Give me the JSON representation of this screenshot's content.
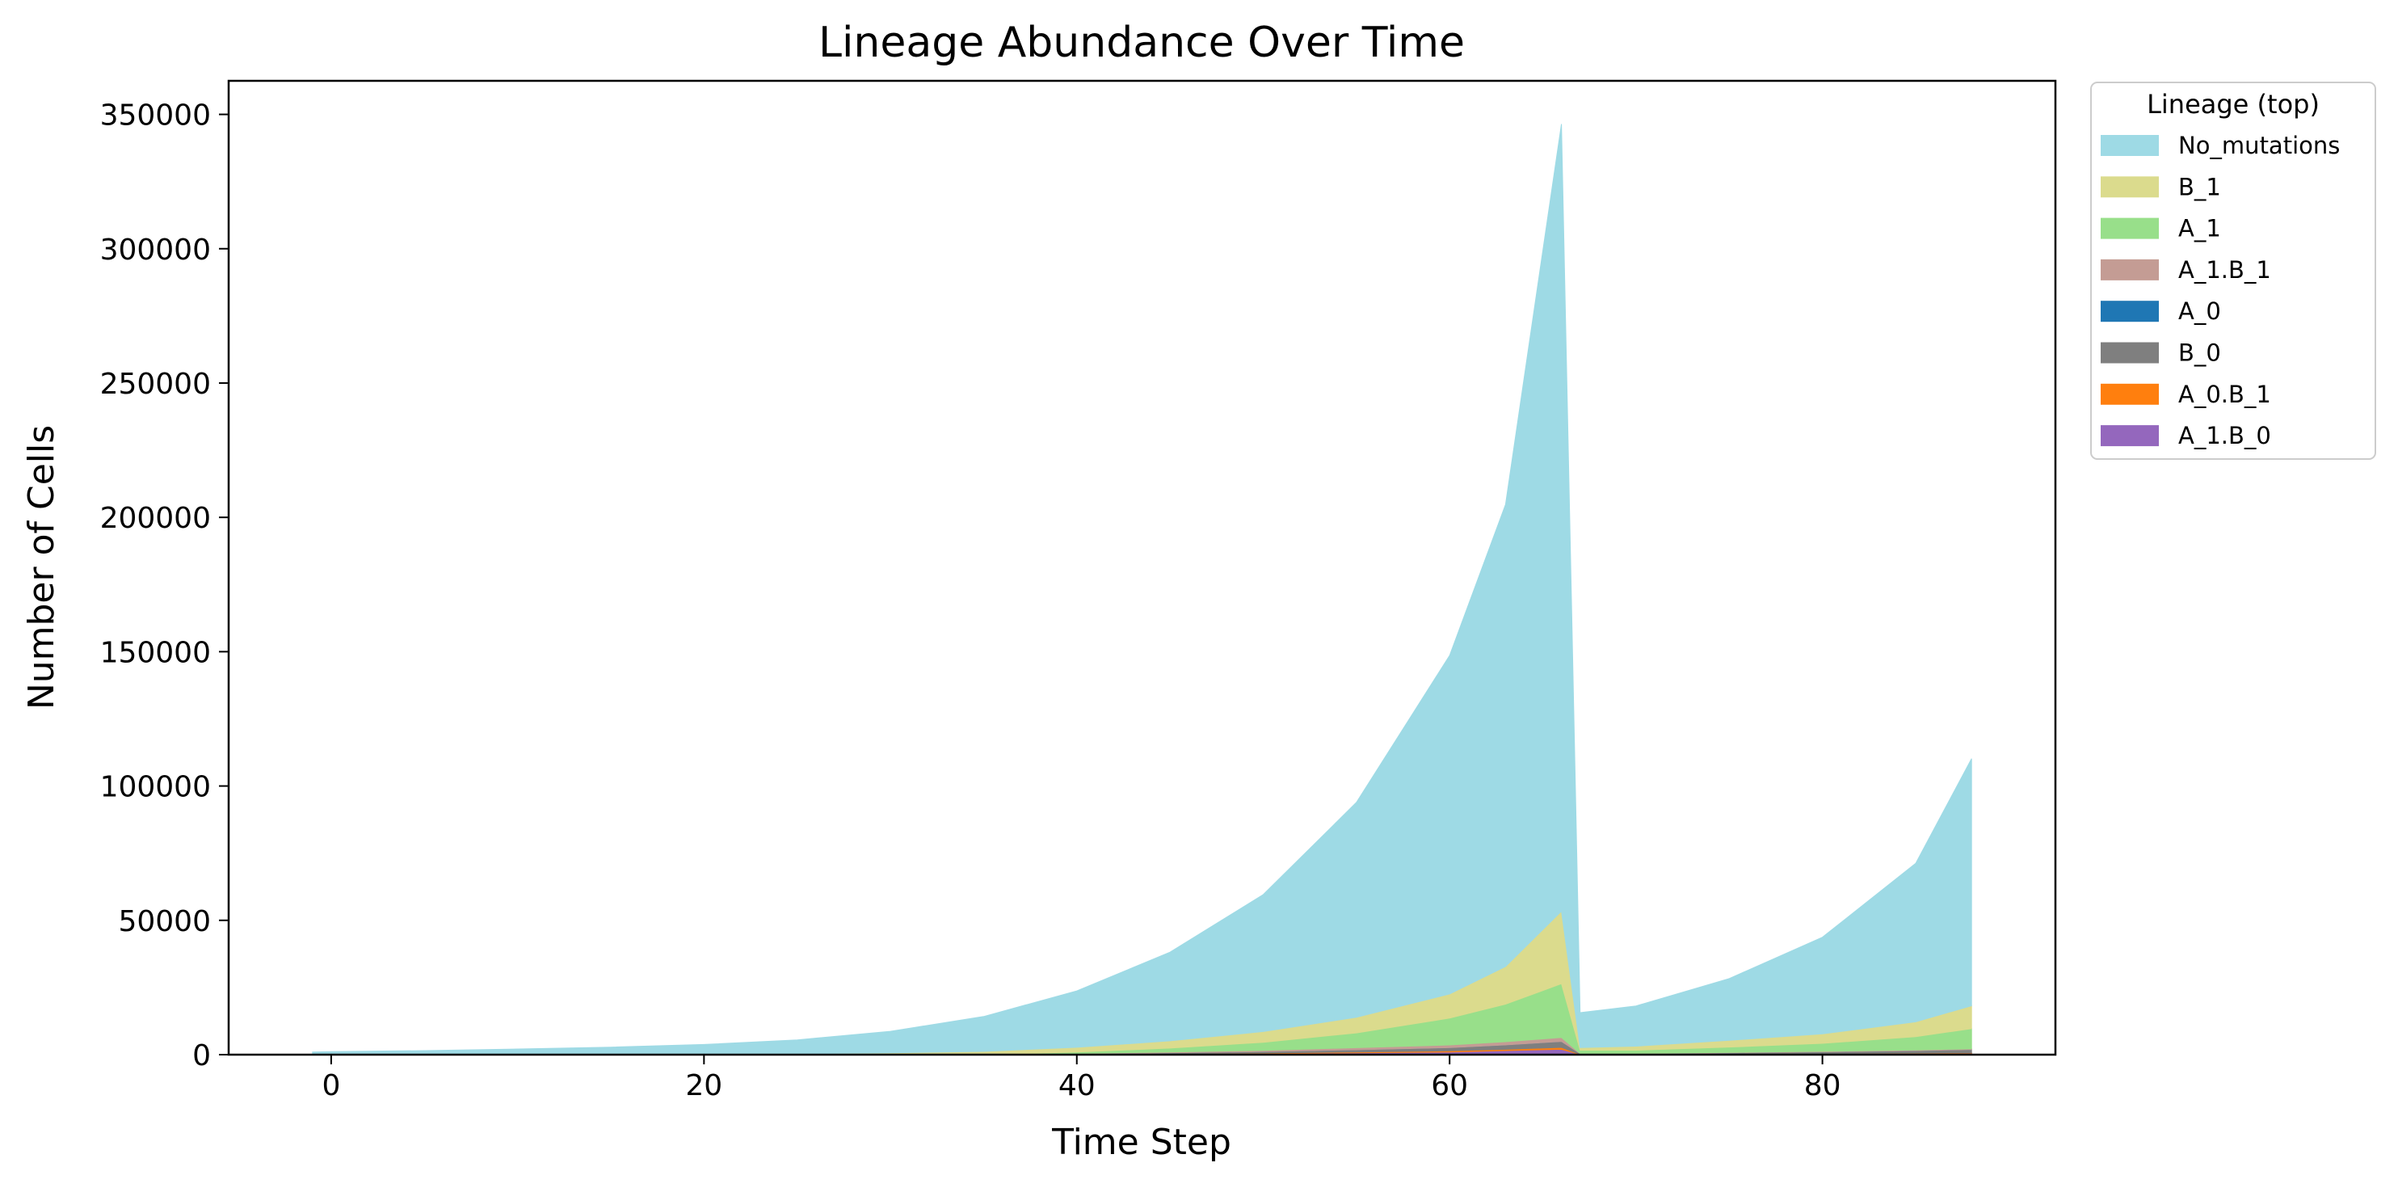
{
  "chart_data": {
    "type": "area",
    "title": "Lineage Abundance Over Time",
    "xlabel": "Time Step",
    "ylabel": "Number of Cells",
    "xlim": [
      -5.5,
      92.5
    ],
    "ylim": [
      0,
      362500
    ],
    "xticks": [
      0,
      20,
      40,
      60,
      80
    ],
    "yticks": [
      0,
      50000,
      100000,
      150000,
      200000,
      250000,
      300000,
      350000
    ],
    "grid": false,
    "legend": {
      "title": "Lineage (top)",
      "placement": "outside-right-top"
    },
    "stacked": true,
    "x": [
      -1,
      0,
      5,
      10,
      15,
      20,
      25,
      30,
      35,
      40,
      45,
      50,
      55,
      60,
      63,
      66,
      67,
      70,
      75,
      80,
      85,
      88
    ],
    "series": [
      {
        "name": "No_mutations",
        "color": "#9edae5",
        "values": [
          1000,
          1100,
          1500,
          2100,
          2800,
          3800,
          5200,
          8000,
          13000,
          21000,
          33000,
          51000,
          80000,
          126000,
          172000,
          293000,
          13000,
          15000,
          23000,
          36000,
          59000,
          92000
        ]
      },
      {
        "name": "B_1",
        "color": "#dbdb8d",
        "values": [
          0,
          0,
          0,
          0,
          0,
          0,
          300,
          700,
          1200,
          1800,
          2700,
          4000,
          5800,
          9000,
          14000,
          27000,
          1000,
          1500,
          2500,
          3500,
          5500,
          8500
        ]
      },
      {
        "name": "A_1",
        "color": "#98df8a",
        "values": [
          0,
          0,
          0,
          0,
          0,
          0,
          0,
          0,
          0,
          500,
          1500,
          3000,
          5500,
          10000,
          14000,
          20000,
          1200,
          1200,
          2000,
          3000,
          5000,
          7500
        ]
      },
      {
        "name": "A_1.B_1",
        "color": "#c49c94",
        "values": [
          0,
          0,
          0,
          0,
          0,
          0,
          0,
          0,
          0,
          100,
          300,
          500,
          800,
          1000,
          1200,
          1500,
          100,
          100,
          150,
          200,
          250,
          300
        ]
      },
      {
        "name": "A_0",
        "color": "#1f77b4",
        "values": [
          0,
          0,
          0,
          0,
          0,
          0,
          0,
          0,
          0,
          0,
          0,
          0,
          0,
          0,
          0,
          0,
          0,
          0,
          0,
          0,
          0,
          0
        ]
      },
      {
        "name": "B_0",
        "color": "#7f7f7f",
        "values": [
          0,
          0,
          0,
          0,
          0,
          0,
          0,
          0,
          0,
          150,
          300,
          500,
          800,
          1200,
          1600,
          2200,
          200,
          200,
          400,
          600,
          900,
          1200
        ]
      },
      {
        "name": "A_0.B_1",
        "color": "#ff7f0e",
        "values": [
          0,
          0,
          0,
          0,
          0,
          0,
          0,
          0,
          0,
          100,
          150,
          200,
          300,
          400,
          500,
          700,
          50,
          50,
          80,
          120,
          160,
          200
        ]
      },
      {
        "name": "A_1.B_0",
        "color": "#9467bd",
        "values": [
          0,
          0,
          0,
          0,
          0,
          0,
          0,
          0,
          0,
          100,
          200,
          400,
          700,
          1000,
          1500,
          2000,
          100,
          100,
          200,
          300,
          400,
          500
        ]
      }
    ]
  }
}
